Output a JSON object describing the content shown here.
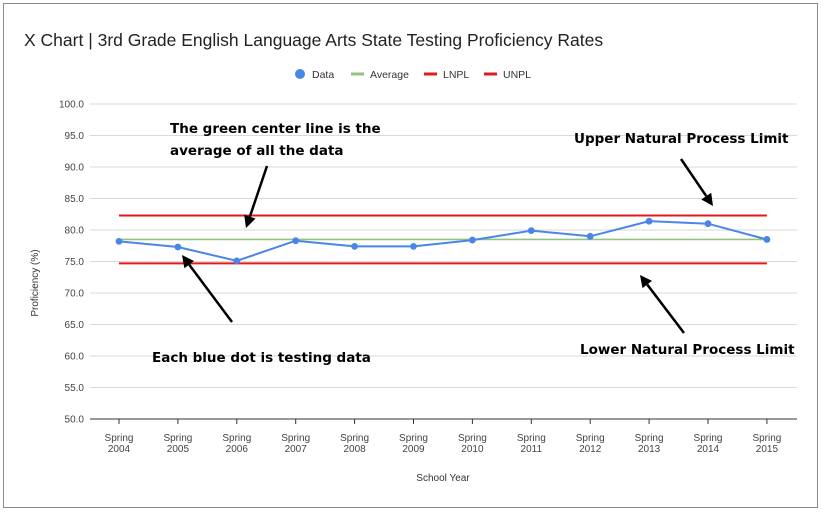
{
  "chart_data": {
    "type": "line",
    "title": "X Chart | 3rd Grade English Language Arts State Testing Proficiency Rates",
    "xlabel": "School Year",
    "ylabel": "Proficiency (%)",
    "ylim": [
      50,
      100
    ],
    "yticks": [
      "50.0",
      "55.0",
      "60.0",
      "65.0",
      "70.0",
      "75.0",
      "80.0",
      "85.0",
      "90.0",
      "95.0",
      "100.0"
    ],
    "categories": [
      [
        "Spring",
        "2004"
      ],
      [
        "Spring",
        "2005"
      ],
      [
        "Spring",
        "2006"
      ],
      [
        "Spring",
        "2007"
      ],
      [
        "Spring",
        "2008"
      ],
      [
        "Spring",
        "2009"
      ],
      [
        "Spring",
        "2010"
      ],
      [
        "Spring",
        "2011"
      ],
      [
        "Spring",
        "2012"
      ],
      [
        "Spring",
        "2013"
      ],
      [
        "Spring",
        "2014"
      ],
      [
        "Spring",
        "2015"
      ]
    ],
    "series": [
      {
        "name": "Data",
        "color": "#4a86e8",
        "values": [
          78.2,
          77.3,
          75.1,
          78.3,
          77.4,
          77.4,
          78.4,
          79.9,
          79.0,
          81.4,
          81.0,
          78.5
        ]
      },
      {
        "name": "Average",
        "color": "#93c47d",
        "constant": 78.5
      },
      {
        "name": "LNPL",
        "color": "#e31a1c",
        "constant": 74.7
      },
      {
        "name": "UNPL",
        "color": "#e31a1c",
        "constant": 82.3
      }
    ],
    "legend_position": "top",
    "grid": true,
    "annotations": [
      {
        "lines": [
          "The green center line is the",
          "average of all the data"
        ]
      },
      {
        "lines": [
          "Upper Natural Process Limit"
        ]
      },
      {
        "lines": [
          "Each blue dot is testing data"
        ]
      },
      {
        "lines": [
          "Lower Natural Process Limit"
        ]
      }
    ]
  }
}
